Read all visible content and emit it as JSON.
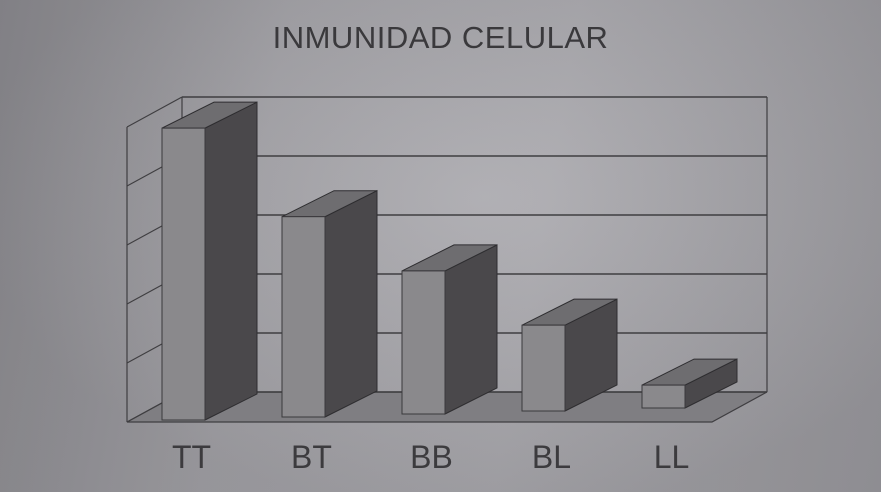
{
  "chart_data": {
    "type": "bar",
    "title": "INMUNIDAD CELULAR",
    "categories": [
      "TT",
      "BT",
      "BB",
      "BL",
      "LL"
    ],
    "values": [
      5.1,
      3.5,
      2.5,
      1.5,
      0.4
    ],
    "ylim": [
      0,
      5
    ],
    "grid": true,
    "three_d": true,
    "colors": {
      "front": "#8a898c",
      "side": "#4a484b",
      "top": "#6e6d70",
      "grid": "#3f3e41",
      "floor": "#7f7e82"
    }
  }
}
